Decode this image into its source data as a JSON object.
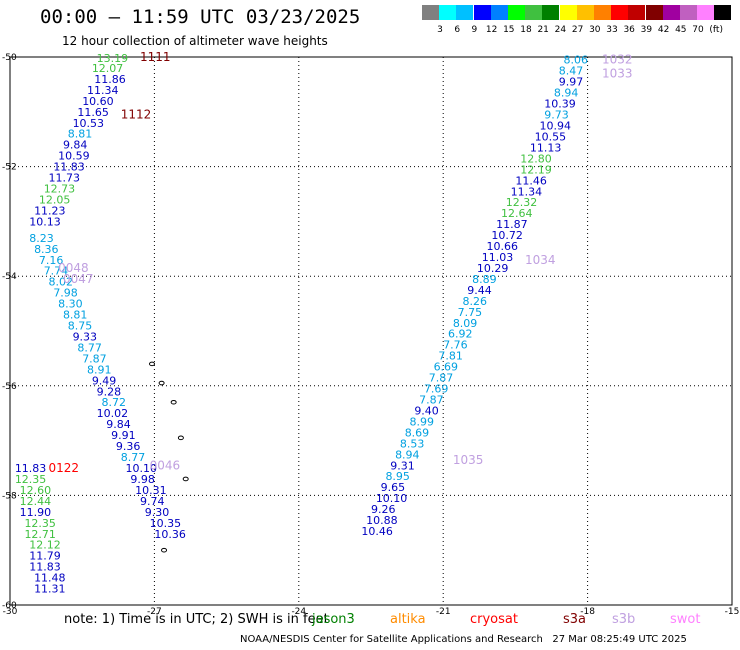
{
  "title": "00:00 – 11:59 UTC 03/23/2025",
  "subtitle": "12 hour collection of altimeter wave heights",
  "colorbar": {
    "unit": "(ft)",
    "colors": [
      "#808080",
      "#00ffff",
      "#00c0ff",
      "#0000ff",
      "#0080ff",
      "#00ff00",
      "#40c040",
      "#008000",
      "#ffff00",
      "#ffc000",
      "#ff8000",
      "#ff0000",
      "#c00000",
      "#800000",
      "#a000a0",
      "#c060c0",
      "#ff80ff",
      "#000000"
    ],
    "labels": [
      "3",
      "6",
      "9",
      "12",
      "15",
      "18",
      "21",
      "24",
      "27",
      "30",
      "33",
      "36",
      "39",
      "42",
      "45",
      "70"
    ]
  },
  "axes": {
    "x_ticks": [
      "-30",
      "-27",
      "-24",
      "-21",
      "-18",
      "-15"
    ],
    "y_ticks": [
      "-50",
      "-52",
      "-54",
      "-56",
      "-58",
      "-60"
    ]
  },
  "map_data": {
    "lon_range": [
      -30,
      -15
    ],
    "lat_range": [
      -60,
      -50
    ],
    "track_labels": [
      {
        "text": "1111",
        "lon": -27.3,
        "lat": -50.0,
        "color": "#800000"
      },
      {
        "text": "1112",
        "lon": -27.7,
        "lat": -51.05,
        "color": "#800000"
      },
      {
        "text": "0048",
        "lon": -29.0,
        "lat": -53.85,
        "color": "#c0a0e0"
      },
      {
        "text": "0047",
        "lon": -28.9,
        "lat": -54.05,
        "color": "#c0a0e0"
      },
      {
        "text": "0046",
        "lon": -27.1,
        "lat": -57.45,
        "color": "#c0a0e0"
      },
      {
        "text": "0122",
        "lon": -29.2,
        "lat": -57.5,
        "color": "#ff0000"
      },
      {
        "text": "1032",
        "lon": -17.7,
        "lat": -50.05,
        "color": "#c0a0e0"
      },
      {
        "text": "1033",
        "lon": -17.7,
        "lat": -50.3,
        "color": "#c0a0e0"
      },
      {
        "text": "1034",
        "lon": -19.3,
        "lat": -53.7,
        "color": "#c0a0e0"
      },
      {
        "text": "1035",
        "lon": -20.8,
        "lat": -57.35,
        "color": "#c0a0e0"
      }
    ],
    "points": [
      {
        "v": "13.19",
        "lon": -28.2,
        "lat": -50.02,
        "c": "#40c040"
      },
      {
        "v": "12.07",
        "lon": -28.3,
        "lat": -50.2,
        "c": "#40c040"
      },
      {
        "v": "11.86",
        "lon": -28.25,
        "lat": -50.4,
        "c": "#0000c0"
      },
      {
        "v": "11.34",
        "lon": -28.4,
        "lat": -50.6,
        "c": "#0000c0"
      },
      {
        "v": "10.60",
        "lon": -28.5,
        "lat": -50.8,
        "c": "#0000c0"
      },
      {
        "v": "11.65",
        "lon": -28.6,
        "lat": -51.0,
        "c": "#0000c0"
      },
      {
        "v": "10.53",
        "lon": -28.7,
        "lat": -51.2,
        "c": "#0000c0"
      },
      {
        "v": "8.81",
        "lon": -28.8,
        "lat": -51.4,
        "c": "#00a0e0"
      },
      {
        "v": "9.84",
        "lon": -28.9,
        "lat": -51.6,
        "c": "#0000c0"
      },
      {
        "v": "10.59",
        "lon": -29.0,
        "lat": -51.8,
        "c": "#0000c0"
      },
      {
        "v": "11.83",
        "lon": -29.1,
        "lat": -52.0,
        "c": "#0000c0"
      },
      {
        "v": "11.73",
        "lon": -29.2,
        "lat": -52.2,
        "c": "#0000c0"
      },
      {
        "v": "12.73",
        "lon": -29.3,
        "lat": -52.4,
        "c": "#40c040"
      },
      {
        "v": "12.05",
        "lon": -29.4,
        "lat": -52.6,
        "c": "#40c040"
      },
      {
        "v": "11.23",
        "lon": -29.5,
        "lat": -52.8,
        "c": "#0000c0"
      },
      {
        "v": "10.13",
        "lon": -29.6,
        "lat": -53.0,
        "c": "#0000c0"
      },
      {
        "v": "8.23",
        "lon": -29.6,
        "lat": -53.3,
        "c": "#00a0e0"
      },
      {
        "v": "8.36",
        "lon": -29.5,
        "lat": -53.5,
        "c": "#00a0e0"
      },
      {
        "v": "7.16",
        "lon": -29.4,
        "lat": -53.7,
        "c": "#00a0e0"
      },
      {
        "v": "7.74",
        "lon": -29.3,
        "lat": -53.9,
        "c": "#00a0e0"
      },
      {
        "v": "8.02",
        "lon": -29.2,
        "lat": -54.1,
        "c": "#00a0e0"
      },
      {
        "v": "7.98",
        "lon": -29.1,
        "lat": -54.3,
        "c": "#00a0e0"
      },
      {
        "v": "8.30",
        "lon": -29.0,
        "lat": -54.5,
        "c": "#00a0e0"
      },
      {
        "v": "8.81",
        "lon": -28.9,
        "lat": -54.7,
        "c": "#00a0e0"
      },
      {
        "v": "8.75",
        "lon": -28.8,
        "lat": -54.9,
        "c": "#00a0e0"
      },
      {
        "v": "9.33",
        "lon": -28.7,
        "lat": -55.1,
        "c": "#0000c0"
      },
      {
        "v": "8.77",
        "lon": -28.6,
        "lat": -55.3,
        "c": "#00a0e0"
      },
      {
        "v": "7.87",
        "lon": -28.5,
        "lat": -55.5,
        "c": "#00a0e0"
      },
      {
        "v": "8.91",
        "lon": -28.4,
        "lat": -55.7,
        "c": "#00a0e0"
      },
      {
        "v": "9.49",
        "lon": -28.3,
        "lat": -55.9,
        "c": "#0000c0"
      },
      {
        "v": "9.28",
        "lon": -28.2,
        "lat": -56.1,
        "c": "#0000c0"
      },
      {
        "v": "8.72",
        "lon": -28.1,
        "lat": -56.3,
        "c": "#00a0e0"
      },
      {
        "v": "10.02",
        "lon": -28.2,
        "lat": -56.5,
        "c": "#0000c0"
      },
      {
        "v": "9.84",
        "lon": -28.0,
        "lat": -56.7,
        "c": "#0000c0"
      },
      {
        "v": "9.91",
        "lon": -27.9,
        "lat": -56.9,
        "c": "#0000c0"
      },
      {
        "v": "9.36",
        "lon": -27.8,
        "lat": -57.1,
        "c": "#0000c0"
      },
      {
        "v": "8.77",
        "lon": -27.7,
        "lat": -57.3,
        "c": "#00a0e0"
      },
      {
        "v": "10.10",
        "lon": -27.6,
        "lat": -57.5,
        "c": "#0000c0"
      },
      {
        "v": "9.98",
        "lon": -27.5,
        "lat": -57.7,
        "c": "#0000c0"
      },
      {
        "v": "10.31",
        "lon": -27.4,
        "lat": -57.9,
        "c": "#0000c0"
      },
      {
        "v": "9.74",
        "lon": -27.3,
        "lat": -58.1,
        "c": "#0000c0"
      },
      {
        "v": "9.30",
        "lon": -27.2,
        "lat": -58.3,
        "c": "#0000c0"
      },
      {
        "v": "10.35",
        "lon": -27.1,
        "lat": -58.5,
        "c": "#0000c0"
      },
      {
        "v": "10.36",
        "lon": -27.0,
        "lat": -58.7,
        "c": "#0000c0"
      },
      {
        "v": "11.83",
        "lon": -29.9,
        "lat": -57.5,
        "c": "#0000c0"
      },
      {
        "v": "12.35",
        "lon": -29.9,
        "lat": -57.7,
        "c": "#40c040"
      },
      {
        "v": "12.60",
        "lon": -29.8,
        "lat": -57.9,
        "c": "#40c040"
      },
      {
        "v": "12.44",
        "lon": -29.8,
        "lat": -58.1,
        "c": "#40c040"
      },
      {
        "v": "11.90",
        "lon": -29.8,
        "lat": -58.3,
        "c": "#0000c0"
      },
      {
        "v": "12.35",
        "lon": -29.7,
        "lat": -58.5,
        "c": "#40c040"
      },
      {
        "v": "12.71",
        "lon": -29.7,
        "lat": -58.7,
        "c": "#40c040"
      },
      {
        "v": "12.12",
        "lon": -29.6,
        "lat": -58.9,
        "c": "#40c040"
      },
      {
        "v": "11.79",
        "lon": -29.6,
        "lat": -59.1,
        "c": "#0000c0"
      },
      {
        "v": "11.83",
        "lon": -29.6,
        "lat": -59.3,
        "c": "#0000c0"
      },
      {
        "v": "11.48",
        "lon": -29.5,
        "lat": -59.5,
        "c": "#0000c0"
      },
      {
        "v": "11.31",
        "lon": -29.5,
        "lat": -59.7,
        "c": "#0000c0"
      },
      {
        "v": "8.06",
        "lon": -18.5,
        "lat": -50.05,
        "c": "#00a0e0"
      },
      {
        "v": "8.47",
        "lon": -18.6,
        "lat": -50.25,
        "c": "#00a0e0"
      },
      {
        "v": "9.97",
        "lon": -18.6,
        "lat": -50.45,
        "c": "#0000c0"
      },
      {
        "v": "8.94",
        "lon": -18.7,
        "lat": -50.65,
        "c": "#00a0e0"
      },
      {
        "v": "10.39",
        "lon": -18.9,
        "lat": -50.85,
        "c": "#0000c0"
      },
      {
        "v": "9.73",
        "lon": -18.9,
        "lat": -51.05,
        "c": "#00a0e0"
      },
      {
        "v": "10.94",
        "lon": -19.0,
        "lat": -51.25,
        "c": "#0000c0"
      },
      {
        "v": "10.55",
        "lon": -19.1,
        "lat": -51.45,
        "c": "#0000c0"
      },
      {
        "v": "11.13",
        "lon": -19.2,
        "lat": -51.65,
        "c": "#0000c0"
      },
      {
        "v": "12.80",
        "lon": -19.4,
        "lat": -51.85,
        "c": "#40c040"
      },
      {
        "v": "12.19",
        "lon": -19.4,
        "lat": -52.05,
        "c": "#40c040"
      },
      {
        "v": "11.46",
        "lon": -19.5,
        "lat": -52.25,
        "c": "#0000c0"
      },
      {
        "v": "11.34",
        "lon": -19.6,
        "lat": -52.45,
        "c": "#0000c0"
      },
      {
        "v": "12.32",
        "lon": -19.7,
        "lat": -52.65,
        "c": "#40c040"
      },
      {
        "v": "12.64",
        "lon": -19.8,
        "lat": -52.85,
        "c": "#40c040"
      },
      {
        "v": "11.87",
        "lon": -19.9,
        "lat": -53.05,
        "c": "#0000c0"
      },
      {
        "v": "10.72",
        "lon": -20.0,
        "lat": -53.25,
        "c": "#0000c0"
      },
      {
        "v": "10.66",
        "lon": -20.1,
        "lat": -53.45,
        "c": "#0000c0"
      },
      {
        "v": "11.03",
        "lon": -20.2,
        "lat": -53.65,
        "c": "#0000c0"
      },
      {
        "v": "10.29",
        "lon": -20.3,
        "lat": -53.85,
        "c": "#0000c0"
      },
      {
        "v": "8.89",
        "lon": -20.4,
        "lat": -54.05,
        "c": "#00a0e0"
      },
      {
        "v": "9.44",
        "lon": -20.5,
        "lat": -54.25,
        "c": "#0000c0"
      },
      {
        "v": "8.26",
        "lon": -20.6,
        "lat": -54.45,
        "c": "#00a0e0"
      },
      {
        "v": "7.75",
        "lon": -20.7,
        "lat": -54.65,
        "c": "#00a0e0"
      },
      {
        "v": "8.09",
        "lon": -20.8,
        "lat": -54.85,
        "c": "#00a0e0"
      },
      {
        "v": "6.92",
        "lon": -20.9,
        "lat": -55.05,
        "c": "#00a0e0"
      },
      {
        "v": "7.76",
        "lon": -21.0,
        "lat": -55.25,
        "c": "#00a0e0"
      },
      {
        "v": "7.81",
        "lon": -21.1,
        "lat": -55.45,
        "c": "#00a0e0"
      },
      {
        "v": "6.69",
        "lon": -21.2,
        "lat": -55.65,
        "c": "#00a0e0"
      },
      {
        "v": "7.87",
        "lon": -21.3,
        "lat": -55.85,
        "c": "#00a0e0"
      },
      {
        "v": "7.69",
        "lon": -21.4,
        "lat": -56.05,
        "c": "#00a0e0"
      },
      {
        "v": "7.87",
        "lon": -21.5,
        "lat": -56.25,
        "c": "#00a0e0"
      },
      {
        "v": "9.40",
        "lon": -21.6,
        "lat": -56.45,
        "c": "#0000c0"
      },
      {
        "v": "8.99",
        "lon": -21.7,
        "lat": -56.65,
        "c": "#00a0e0"
      },
      {
        "v": "8.69",
        "lon": -21.8,
        "lat": -56.85,
        "c": "#00a0e0"
      },
      {
        "v": "8.53",
        "lon": -21.9,
        "lat": -57.05,
        "c": "#00a0e0"
      },
      {
        "v": "8.94",
        "lon": -22.0,
        "lat": -57.25,
        "c": "#00a0e0"
      },
      {
        "v": "9.31",
        "lon": -22.1,
        "lat": -57.45,
        "c": "#0000c0"
      },
      {
        "v": "8.95",
        "lon": -22.2,
        "lat": -57.65,
        "c": "#00a0e0"
      },
      {
        "v": "9.65",
        "lon": -22.3,
        "lat": -57.85,
        "c": "#0000c0"
      },
      {
        "v": "10.10",
        "lon": -22.4,
        "lat": -58.05,
        "c": "#0000c0"
      },
      {
        "v": "9.26",
        "lon": -22.5,
        "lat": -58.25,
        "c": "#0000c0"
      },
      {
        "v": "10.88",
        "lon": -22.6,
        "lat": -58.45,
        "c": "#0000c0"
      },
      {
        "v": "10.46",
        "lon": -22.7,
        "lat": -58.65,
        "c": "#0000c0"
      }
    ]
  },
  "note": "note: 1) Time is in UTC; 2) SWH is in feet",
  "legend": [
    {
      "name": "jason3",
      "color": "#008000"
    },
    {
      "name": "altika",
      "color": "#ff8c00"
    },
    {
      "name": "cryosat",
      "color": "#ff0000"
    },
    {
      "name": "s3a",
      "color": "#800000"
    },
    {
      "name": "s3b",
      "color": "#c0a0e0"
    },
    {
      "name": "swot",
      "color": "#ff80ff"
    }
  ],
  "credit": "NOAA/NESDIS Center for Satellite Applications and Research   27 Mar 08:25:49 UTC 2025"
}
